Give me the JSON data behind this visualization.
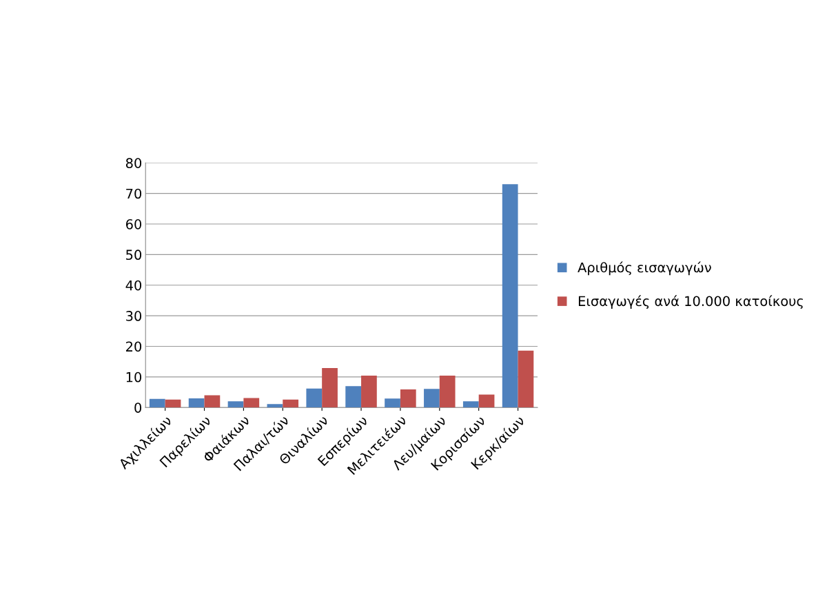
{
  "chart_data": {
    "type": "bar",
    "categories": [
      "Αχιλλείων",
      "Παρελίων",
      "Φαιάκων",
      "Παλαι/τών",
      "Θιναλίων",
      "Εσπερίων",
      "Μελιτειέων",
      "Λευ/μαίων",
      "Κορισσίων",
      "Κερκ/αίων"
    ],
    "series": [
      {
        "name": "Αριθμός εισαγωγών",
        "color": "#4f81bd",
        "values": [
          2.8,
          3.0,
          2.0,
          1.1,
          6.2,
          7.0,
          2.9,
          6.1,
          2.0,
          73
        ]
      },
      {
        "name": "Εισαγωγές ανά 10.000 κατοίκους",
        "color": "#c0504d",
        "values": [
          2.6,
          4.0,
          3.1,
          2.6,
          12.9,
          10.4,
          5.9,
          10.4,
          4.2,
          18.6
        ]
      }
    ],
    "ylim": [
      0,
      80
    ],
    "yticks": [
      0,
      10,
      20,
      30,
      40,
      50,
      60,
      70,
      80
    ],
    "grid": "y",
    "legend": "right"
  }
}
